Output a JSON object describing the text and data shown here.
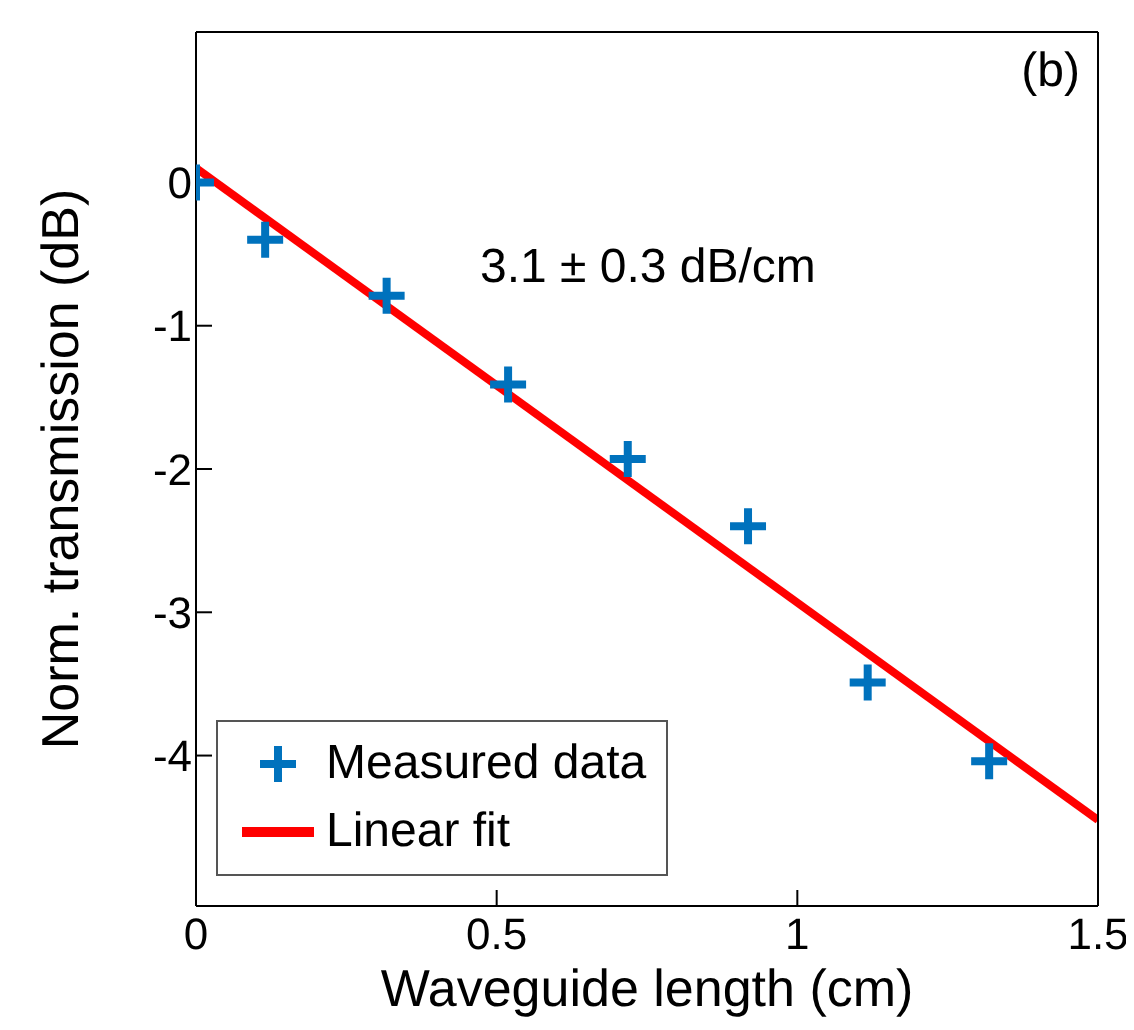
{
  "chart_data": {
    "type": "scatter",
    "xlabel": "Waveguide length (cm)",
    "ylabel": "Norm. transmission (dB)",
    "annotations": [
      "(b)",
      "3.1 ± 0.3 dB/cm"
    ],
    "series": [
      {
        "name": "Measured data",
        "color": "#0072bd",
        "marker": "cross",
        "x": [
          0,
          0.115,
          0.317,
          0.519,
          0.718,
          0.918,
          1.117,
          1.319
        ],
        "values": [
          0,
          -0.4,
          -0.79,
          -1.41,
          -1.93,
          -2.4,
          -3.49,
          -4.04
        ]
      },
      {
        "name": "Linear fit",
        "type": "line",
        "color": "#ff0000",
        "marker": "none",
        "x": [
          0,
          1.5
        ],
        "values": [
          0.1,
          -4.45
        ]
      }
    ],
    "xlim": [
      0,
      1.5
    ],
    "xticks": [
      0,
      0.5,
      1,
      1.5
    ],
    "ylim": [
      -5.05,
      1.05
    ],
    "yticks": [
      0,
      -1,
      -2,
      -3,
      -4
    ],
    "grid": false,
    "legend": "bottom left"
  }
}
